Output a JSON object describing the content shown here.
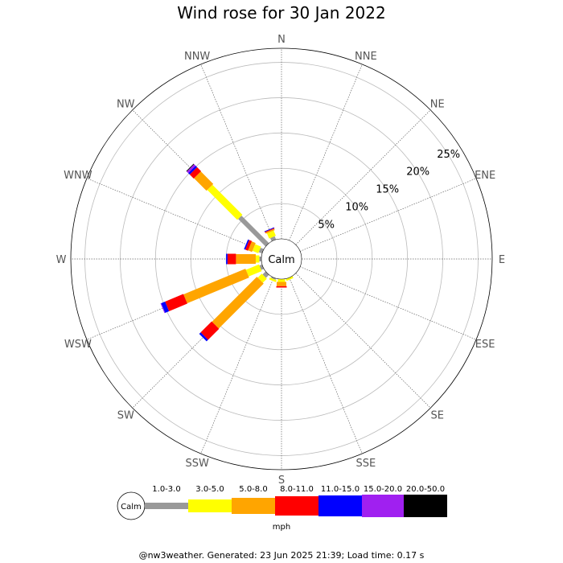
{
  "chart_data": {
    "type": "windrose",
    "title": "Wind rose for 30 Jan 2022",
    "directions": [
      "N",
      "NNE",
      "NE",
      "ENE",
      "E",
      "ESE",
      "SE",
      "SSE",
      "S",
      "SSW",
      "SW",
      "WSW",
      "W",
      "WNW",
      "NW",
      "NNW"
    ],
    "radial_ticks": [
      "5%",
      "10%",
      "15%",
      "20%",
      "25%"
    ],
    "radial_tick_values": [
      5,
      10,
      15,
      20,
      25
    ],
    "radial_max": 27,
    "calm_label": "Calm",
    "unit": "mph",
    "speed_bins": [
      {
        "name": "1.0-3.0",
        "color": "#999999"
      },
      {
        "name": "3.0-5.0",
        "color": "#ffff00"
      },
      {
        "name": "5.0-8.0",
        "color": "#ffa500"
      },
      {
        "name": "8.0-11.0",
        "color": "#ff0000"
      },
      {
        "name": "11.0-15.0",
        "color": "#0000ff"
      },
      {
        "name": "15.0-20.0",
        "color": "#a020f0"
      },
      {
        "name": "20.0-50.0",
        "color": "#000000"
      }
    ],
    "series": [
      {
        "name": "1.0-3.0",
        "values": [
          0,
          0,
          0,
          0,
          0,
          0,
          0,
          0,
          0,
          0.2,
          0.6,
          0.4,
          0.3,
          0.5,
          5.5,
          0.5
        ]
      },
      {
        "name": "3.0-5.0",
        "values": [
          0,
          0,
          0,
          0,
          0,
          0,
          0,
          0.3,
          0.4,
          0.3,
          0.8,
          2.0,
          0.5,
          0.9,
          6.0,
          0.8
        ]
      },
      {
        "name": "5.0-8.0",
        "values": [
          0,
          0,
          0,
          0,
          0,
          0,
          0,
          0,
          0.6,
          0,
          9.0,
          9.5,
          2.8,
          0.6,
          2.5,
          0.2
        ]
      },
      {
        "name": "8.0-11.0",
        "values": [
          0,
          0,
          0,
          0,
          0,
          0,
          0,
          0,
          0.2,
          0,
          2.2,
          2.8,
          1.2,
          0.4,
          0.8,
          0.1
        ]
      },
      {
        "name": "11.0-15.0",
        "values": [
          0,
          0,
          0,
          0,
          0,
          0,
          0,
          0,
          0,
          0,
          0.3,
          0.6,
          0.2,
          0.2,
          0.3,
          0.1
        ]
      },
      {
        "name": "15.0-20.0",
        "values": [
          0,
          0,
          0,
          0,
          0,
          0,
          0,
          0,
          0,
          0,
          0,
          0.1,
          0,
          0,
          0.3,
          0
        ]
      },
      {
        "name": "20.0-50.0",
        "values": [
          0,
          0,
          0,
          0,
          0,
          0,
          0,
          0,
          0,
          0,
          0,
          0,
          0,
          0,
          0.1,
          0
        ]
      }
    ]
  },
  "footer": "@nw3weather. Generated: 23 Jun 2025 21:39; Load time: 0.17 s"
}
